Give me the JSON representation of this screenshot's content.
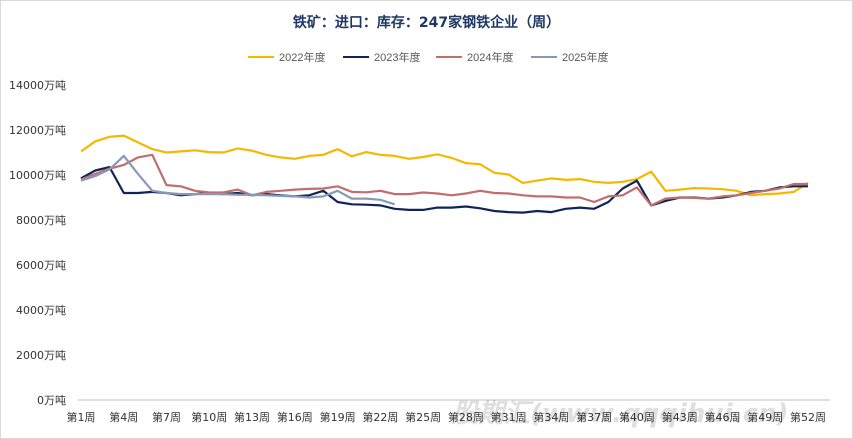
{
  "title": "铁矿：进口：库存：247家钢铁企业（周）",
  "watermark": "股期汇(www.qqqihui.cn)",
  "chart_data": {
    "type": "line",
    "title": "铁矿：进口：库存：247家钢铁企业（周）",
    "xlabel": "",
    "ylabel": "",
    "ylim": [
      0,
      14000
    ],
    "yticks": [
      0,
      2000,
      4000,
      6000,
      8000,
      10000,
      12000,
      14000
    ],
    "ytick_labels": [
      "0万吨",
      "2000万吨",
      "4000万吨",
      "6000万吨",
      "8000万吨",
      "10000万吨",
      "12000万吨",
      "14000万吨"
    ],
    "x_label_weeks": [
      1,
      4,
      7,
      10,
      13,
      16,
      19,
      22,
      25,
      28,
      31,
      34,
      37,
      40,
      43,
      46,
      49,
      52
    ],
    "x_tick_labels": [
      "第1周",
      "第4周",
      "第7周",
      "第10周",
      "第13周",
      "第16周",
      "第19周",
      "第22周",
      "第25周",
      "第28周",
      "第31周",
      "第34周",
      "第37周",
      "第40周",
      "第43周",
      "第46周",
      "第49周",
      "第52周"
    ],
    "legend_position": "top",
    "grid": false,
    "series": [
      {
        "name": "2022年度",
        "color": "#f5b800",
        "values": [
          11050,
          11500,
          11700,
          11750,
          11450,
          11150,
          11000,
          11050,
          11100,
          11020,
          11000,
          11180,
          11080,
          10900,
          10780,
          10720,
          10850,
          10900,
          11150,
          10830,
          11020,
          10900,
          10850,
          10720,
          10800,
          10920,
          10760,
          10530,
          10480,
          10100,
          10020,
          9650,
          9750,
          9850,
          9780,
          9820,
          9700,
          9650,
          9700,
          9820,
          10150,
          9300,
          9350,
          9420,
          9400,
          9370,
          9300,
          9100,
          9150,
          9180,
          9250,
          9650
        ]
      },
      {
        "name": "2023年度",
        "color": "#0f2557",
        "values": [
          9850,
          10200,
          10350,
          9200,
          9200,
          9250,
          9200,
          9100,
          9150,
          9200,
          9150,
          9200,
          9100,
          9150,
          9100,
          9050,
          9100,
          9300,
          8800,
          8700,
          8680,
          8650,
          8500,
          8450,
          8450,
          8550,
          8550,
          8600,
          8520,
          8400,
          8350,
          8330,
          8400,
          8350,
          8500,
          8550,
          8500,
          8800,
          9400,
          9750,
          8650,
          8850,
          9000,
          9000,
          8950,
          9000,
          9100,
          9250,
          9300,
          9450,
          9500,
          9500
        ]
      },
      {
        "name": "2024年度",
        "color": "#c06e6e",
        "values": [
          9800,
          10050,
          10280,
          10450,
          10780,
          10900,
          9550,
          9500,
          9300,
          9220,
          9230,
          9350,
          9100,
          9250,
          9300,
          9350,
          9380,
          9400,
          9500,
          9250,
          9230,
          9300,
          9150,
          9150,
          9220,
          9180,
          9100,
          9180,
          9300,
          9200,
          9180,
          9100,
          9050,
          9050,
          9000,
          9000,
          8800,
          9050,
          9100,
          9450,
          8650,
          8950,
          9000,
          8980,
          8950,
          9050,
          9100,
          9200,
          9300,
          9400,
          9600,
          9600
        ]
      },
      {
        "name": "2025年度",
        "color": "#8899b8",
        "values": [
          9750,
          9950,
          10250,
          10850,
          10050,
          9300,
          9200,
          9150,
          9150,
          9150,
          9150,
          9120,
          9120,
          9100,
          9070,
          9050,
          9000,
          9050,
          9300,
          8950,
          8950,
          8900,
          8700
        ]
      }
    ]
  }
}
